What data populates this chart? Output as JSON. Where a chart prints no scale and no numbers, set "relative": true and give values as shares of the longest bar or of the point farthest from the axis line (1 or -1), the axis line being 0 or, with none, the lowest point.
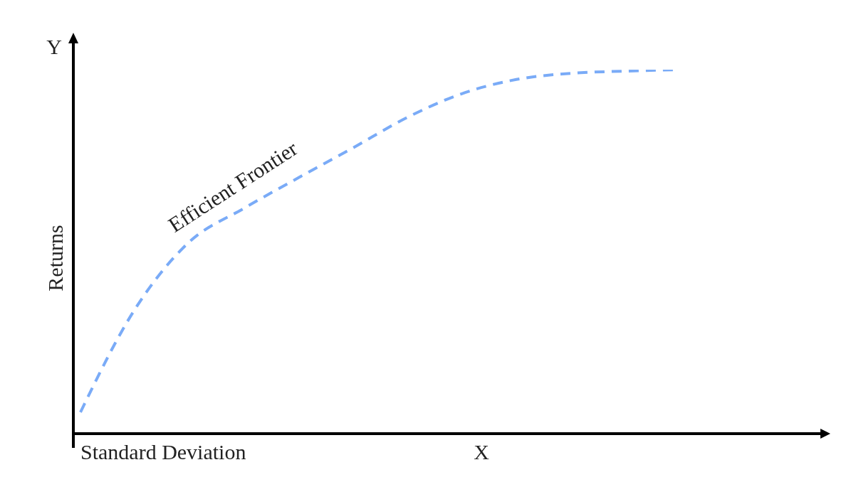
{
  "chart_data": {
    "type": "line",
    "relative": true,
    "xlabel": "Standard Deviation",
    "ylabel": "Returns",
    "annotations": [
      "X",
      "Y"
    ],
    "categories": [
      null,
      null,
      null,
      null,
      null,
      null,
      null,
      null,
      null,
      null,
      null,
      null
    ],
    "series": [
      {
        "name": "Efficient Frontier",
        "color": "#7aabf7",
        "values": [
          0.059,
          0.342,
          0.527,
          0.619,
          0.703,
          0.785,
          0.869,
          0.934,
          0.973,
          0.99,
          0.996,
          1
        ]
      }
    ],
    "line_style": "dashed",
    "marker": "none",
    "grid": false,
    "legend": false,
    "tick_labels": false
  }
}
